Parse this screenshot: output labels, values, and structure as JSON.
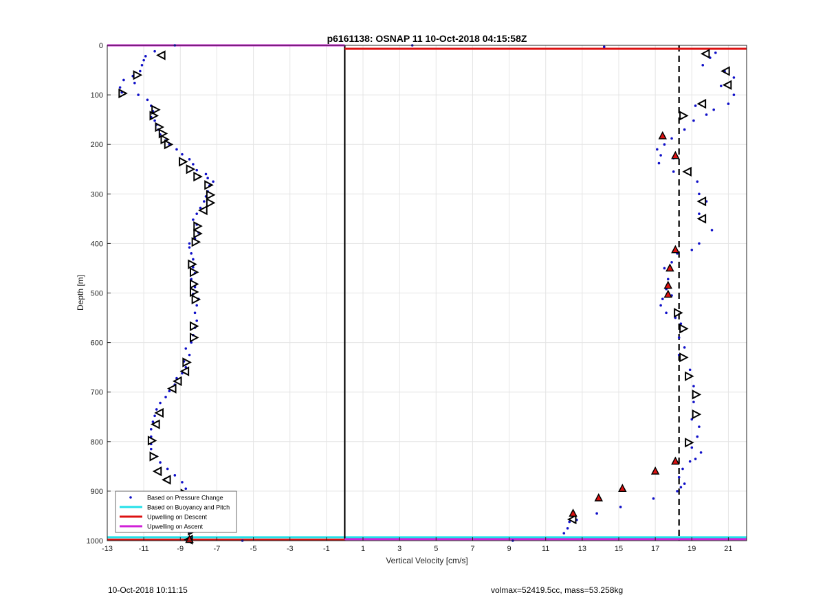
{
  "colors": {
    "pressure": "#1010c8",
    "buoyancy": "#22e0e8",
    "descent": "#dd1111",
    "ascent": "#d020d8",
    "grid": "#e4e4e4",
    "axis": "#222222"
  },
  "footer": {
    "left": "10-Oct-2018 10:11:15",
    "right": "volmax=52419.5cc, mass=53.258kg"
  },
  "chart_data": {
    "type": "scatter",
    "title": "p6161138: OSNAP 11 10-Oct-2018 04:15:58Z",
    "xlabel": "Vertical Velocity [cm/s]",
    "ylabel": "Depth [m]",
    "xlim": [
      -13,
      22
    ],
    "ylim": [
      0,
      1000
    ],
    "y_reversed": true,
    "grid": true,
    "legend_position": "bottom-left",
    "x_ticks": [
      -13,
      -11,
      -9,
      -7,
      -5,
      -3,
      -1,
      1,
      3,
      5,
      7,
      9,
      11,
      13,
      15,
      17,
      19,
      21
    ],
    "y_ticks": [
      0,
      100,
      200,
      300,
      400,
      500,
      600,
      700,
      800,
      900,
      1000
    ],
    "legend": [
      "Based on Pressure Change",
      "Based on Buoyancy and Pitch",
      "Upwelling on Descent",
      "Upwelling on Ascent"
    ],
    "series": [
      {
        "name": "Based on Pressure Change",
        "style": "dots",
        "points": [
          [
            -9.3,
            0
          ],
          [
            -10.4,
            12
          ],
          [
            -10.9,
            22
          ],
          [
            -11.0,
            30
          ],
          [
            -11.1,
            40
          ],
          [
            -11.2,
            52
          ],
          [
            -11.6,
            62
          ],
          [
            -12.1,
            70
          ],
          [
            -11.5,
            76
          ],
          [
            -12.3,
            85
          ],
          [
            -12.2,
            95
          ],
          [
            -11.3,
            100
          ],
          [
            -10.8,
            110
          ],
          [
            -10.6,
            122
          ],
          [
            -10.5,
            133
          ],
          [
            -10.6,
            145
          ],
          [
            -10.4,
            152
          ],
          [
            -10.3,
            160
          ],
          [
            -10.2,
            170
          ],
          [
            -10.1,
            180
          ],
          [
            -9.8,
            192
          ],
          [
            -9.6,
            200
          ],
          [
            -9.2,
            210
          ],
          [
            -8.9,
            220
          ],
          [
            -8.5,
            230
          ],
          [
            -8.3,
            240
          ],
          [
            -8.1,
            252
          ],
          [
            -7.6,
            260
          ],
          [
            -7.5,
            268
          ],
          [
            -7.2,
            275
          ],
          [
            -7.4,
            283
          ],
          [
            -7.5,
            295
          ],
          [
            -7.6,
            305
          ],
          [
            -7.7,
            315
          ],
          [
            -7.9,
            328
          ],
          [
            -8.1,
            340
          ],
          [
            -8.3,
            352
          ],
          [
            -8.1,
            362
          ],
          [
            -8.0,
            378
          ],
          [
            -8.2,
            390
          ],
          [
            -8.5,
            400
          ],
          [
            -8.5,
            408
          ],
          [
            -8.4,
            420
          ],
          [
            -8.3,
            432
          ],
          [
            -8.3,
            448
          ],
          [
            -8.2,
            460
          ],
          [
            -8.4,
            472
          ],
          [
            -8.2,
            488
          ],
          [
            -8.3,
            502
          ],
          [
            -8.0,
            512
          ],
          [
            -8.1,
            525
          ],
          [
            -8.2,
            540
          ],
          [
            -8.1,
            556
          ],
          [
            -8.2,
            570
          ],
          [
            -8.3,
            585
          ],
          [
            -8.4,
            600
          ],
          [
            -8.7,
            612
          ],
          [
            -8.5,
            625
          ],
          [
            -8.8,
            638
          ],
          [
            -8.7,
            650
          ],
          [
            -8.9,
            662
          ],
          [
            -9.2,
            672
          ],
          [
            -9.3,
            685
          ],
          [
            -9.6,
            698
          ],
          [
            -9.8,
            710
          ],
          [
            -10.1,
            722
          ],
          [
            -10.3,
            735
          ],
          [
            -10.4,
            748
          ],
          [
            -10.5,
            760
          ],
          [
            -10.6,
            775
          ],
          [
            -10.6,
            790
          ],
          [
            -10.6,
            805
          ],
          [
            -10.6,
            815
          ],
          [
            -10.3,
            830
          ],
          [
            -10.1,
            842
          ],
          [
            -9.7,
            855
          ],
          [
            -9.3,
            868
          ],
          [
            -8.9,
            882
          ],
          [
            -8.7,
            895
          ],
          [
            -8.5,
            910
          ],
          [
            -8.4,
            925
          ],
          [
            -8.4,
            940
          ],
          [
            -8.3,
            955
          ],
          [
            -8.3,
            968
          ],
          [
            -8.5,
            985
          ],
          [
            -8.4,
            996
          ],
          [
            -5.6,
            1000
          ],
          [
            3.7,
            0
          ],
          [
            14.2,
            3
          ],
          [
            20.3,
            15
          ],
          [
            20.0,
            25
          ],
          [
            19.6,
            40
          ],
          [
            20.8,
            52
          ],
          [
            21.3,
            65
          ],
          [
            20.6,
            82
          ],
          [
            21.3,
            100
          ],
          [
            21.0,
            118
          ],
          [
            19.2,
            122
          ],
          [
            20.2,
            130
          ],
          [
            19.8,
            140
          ],
          [
            19.1,
            152
          ],
          [
            18.6,
            170
          ],
          [
            17.9,
            188
          ],
          [
            17.5,
            200
          ],
          [
            17.1,
            210
          ],
          [
            17.3,
            222
          ],
          [
            18.0,
            228
          ],
          [
            17.2,
            238
          ],
          [
            18.0,
            255
          ],
          [
            19.3,
            275
          ],
          [
            19.4,
            300
          ],
          [
            19.8,
            315
          ],
          [
            19.4,
            340
          ],
          [
            20.1,
            373
          ],
          [
            19.4,
            400
          ],
          [
            19.0,
            413
          ],
          [
            18.2,
            420
          ],
          [
            17.9,
            438
          ],
          [
            17.5,
            450
          ],
          [
            17.7,
            472
          ],
          [
            17.6,
            492
          ],
          [
            17.9,
            505
          ],
          [
            17.4,
            512
          ],
          [
            17.3,
            525
          ],
          [
            17.6,
            540
          ],
          [
            18.1,
            550
          ],
          [
            18.4,
            562
          ],
          [
            18.3,
            590
          ],
          [
            18.6,
            610
          ],
          [
            18.3,
            625
          ],
          [
            18.9,
            655
          ],
          [
            19.1,
            688
          ],
          [
            19.1,
            720
          ],
          [
            19.0,
            755
          ],
          [
            19.4,
            770
          ],
          [
            19.3,
            790
          ],
          [
            19.0,
            812
          ],
          [
            19.5,
            822
          ],
          [
            19.2,
            835
          ],
          [
            18.9,
            840
          ],
          [
            18.5,
            855
          ],
          [
            18.3,
            872
          ],
          [
            18.6,
            885
          ],
          [
            18.4,
            892
          ],
          [
            18.2,
            900
          ],
          [
            16.9,
            915
          ],
          [
            15.1,
            932
          ],
          [
            13.8,
            945
          ],
          [
            12.7,
            958
          ],
          [
            12.3,
            962
          ],
          [
            12.2,
            975
          ],
          [
            12.0,
            985
          ],
          [
            9.2,
            1000
          ]
        ]
      },
      {
        "name": "open triangles",
        "style": "open-triangles",
        "points": [
          [
            -10.0,
            20,
            "left"
          ],
          [
            -11.4,
            60,
            "right"
          ],
          [
            -12.2,
            97,
            "right"
          ],
          [
            -10.4,
            130,
            "right"
          ],
          [
            -10.5,
            142,
            "right"
          ],
          [
            -10.2,
            165,
            "right"
          ],
          [
            -10.0,
            178,
            "right"
          ],
          [
            -9.9,
            190,
            "right"
          ],
          [
            -9.7,
            200,
            "right"
          ],
          [
            -8.9,
            235,
            "right"
          ],
          [
            -8.5,
            250,
            "right"
          ],
          [
            -8.1,
            265,
            "right"
          ],
          [
            -7.5,
            282,
            "right"
          ],
          [
            -7.4,
            302,
            "right"
          ],
          [
            -7.4,
            318,
            "right"
          ],
          [
            -7.7,
            333,
            "left"
          ],
          [
            -8.1,
            365,
            "right"
          ],
          [
            -8.1,
            380,
            "right"
          ],
          [
            -8.2,
            397,
            "right"
          ],
          [
            -8.4,
            442,
            "right"
          ],
          [
            -8.3,
            458,
            "right"
          ],
          [
            -8.3,
            482,
            "right"
          ],
          [
            -8.3,
            498,
            "right"
          ],
          [
            -8.2,
            513,
            "right"
          ],
          [
            -8.3,
            567,
            "right"
          ],
          [
            -8.3,
            590,
            "right"
          ],
          [
            -8.7,
            640,
            "right"
          ],
          [
            -8.7,
            658,
            "left"
          ],
          [
            -9.1,
            678,
            "left"
          ],
          [
            -9.4,
            693,
            "left"
          ],
          [
            -10.1,
            742,
            "left"
          ],
          [
            -10.3,
            765,
            "left"
          ],
          [
            -10.6,
            798,
            "right"
          ],
          [
            -10.5,
            830,
            "right"
          ],
          [
            -10.2,
            860,
            "left"
          ],
          [
            -9.7,
            877,
            "left"
          ],
          [
            -8.8,
            905,
            "right"
          ],
          [
            -8.7,
            922,
            "right"
          ],
          [
            -8.4,
            948,
            "right"
          ],
          [
            -8.4,
            980,
            "right"
          ],
          [
            -8.5,
            998,
            "left"
          ],
          [
            19.8,
            17,
            "left"
          ],
          [
            20.9,
            52,
            "left"
          ],
          [
            21.0,
            80,
            "left"
          ],
          [
            19.6,
            118,
            "left"
          ],
          [
            18.5,
            142,
            "right"
          ],
          [
            18.8,
            255,
            "left"
          ],
          [
            19.6,
            315,
            "left"
          ],
          [
            19.6,
            350,
            "left"
          ],
          [
            18.2,
            540,
            "right"
          ],
          [
            18.5,
            572,
            "right"
          ],
          [
            18.5,
            630,
            "right"
          ],
          [
            18.8,
            668,
            "right"
          ],
          [
            19.2,
            705,
            "right"
          ],
          [
            19.2,
            745,
            "right"
          ],
          [
            18.8,
            802,
            "right"
          ],
          [
            12.5,
            957,
            "left"
          ]
        ]
      },
      {
        "name": "filled red markers",
        "style": "filled-triangles",
        "points": [
          [
            17.4,
            183
          ],
          [
            18.1,
            223
          ],
          [
            18.1,
            413
          ],
          [
            17.8,
            450
          ],
          [
            17.7,
            485
          ],
          [
            17.7,
            503
          ],
          [
            17.0,
            860
          ],
          [
            15.2,
            895
          ],
          [
            13.9,
            914
          ],
          [
            12.5,
            945
          ],
          [
            18.1,
            840
          ],
          [
            -8.5,
            998
          ]
        ]
      },
      {
        "name": "Based on Buoyancy and Pitch",
        "style": "hline",
        "y": 993
      },
      {
        "name": "Upwelling on Descent",
        "style": "segments",
        "segments": [
          [
            [
              0,
              7
            ],
            [
              22,
              7
            ]
          ],
          [
            [
              -13,
              998
            ],
            [
              0,
              998
            ]
          ]
        ]
      },
      {
        "name": "Upwelling on Ascent",
        "style": "segments",
        "segments": [
          [
            [
              -13,
              0
            ],
            [
              0,
              0
            ]
          ],
          [
            [
              0,
              997
            ],
            [
              22,
              997
            ]
          ]
        ]
      },
      {
        "name": "zero line",
        "style": "vline-solid",
        "x": 0
      },
      {
        "name": "mean descent velocity",
        "style": "vline-dashed",
        "x": 18.3
      }
    ]
  }
}
